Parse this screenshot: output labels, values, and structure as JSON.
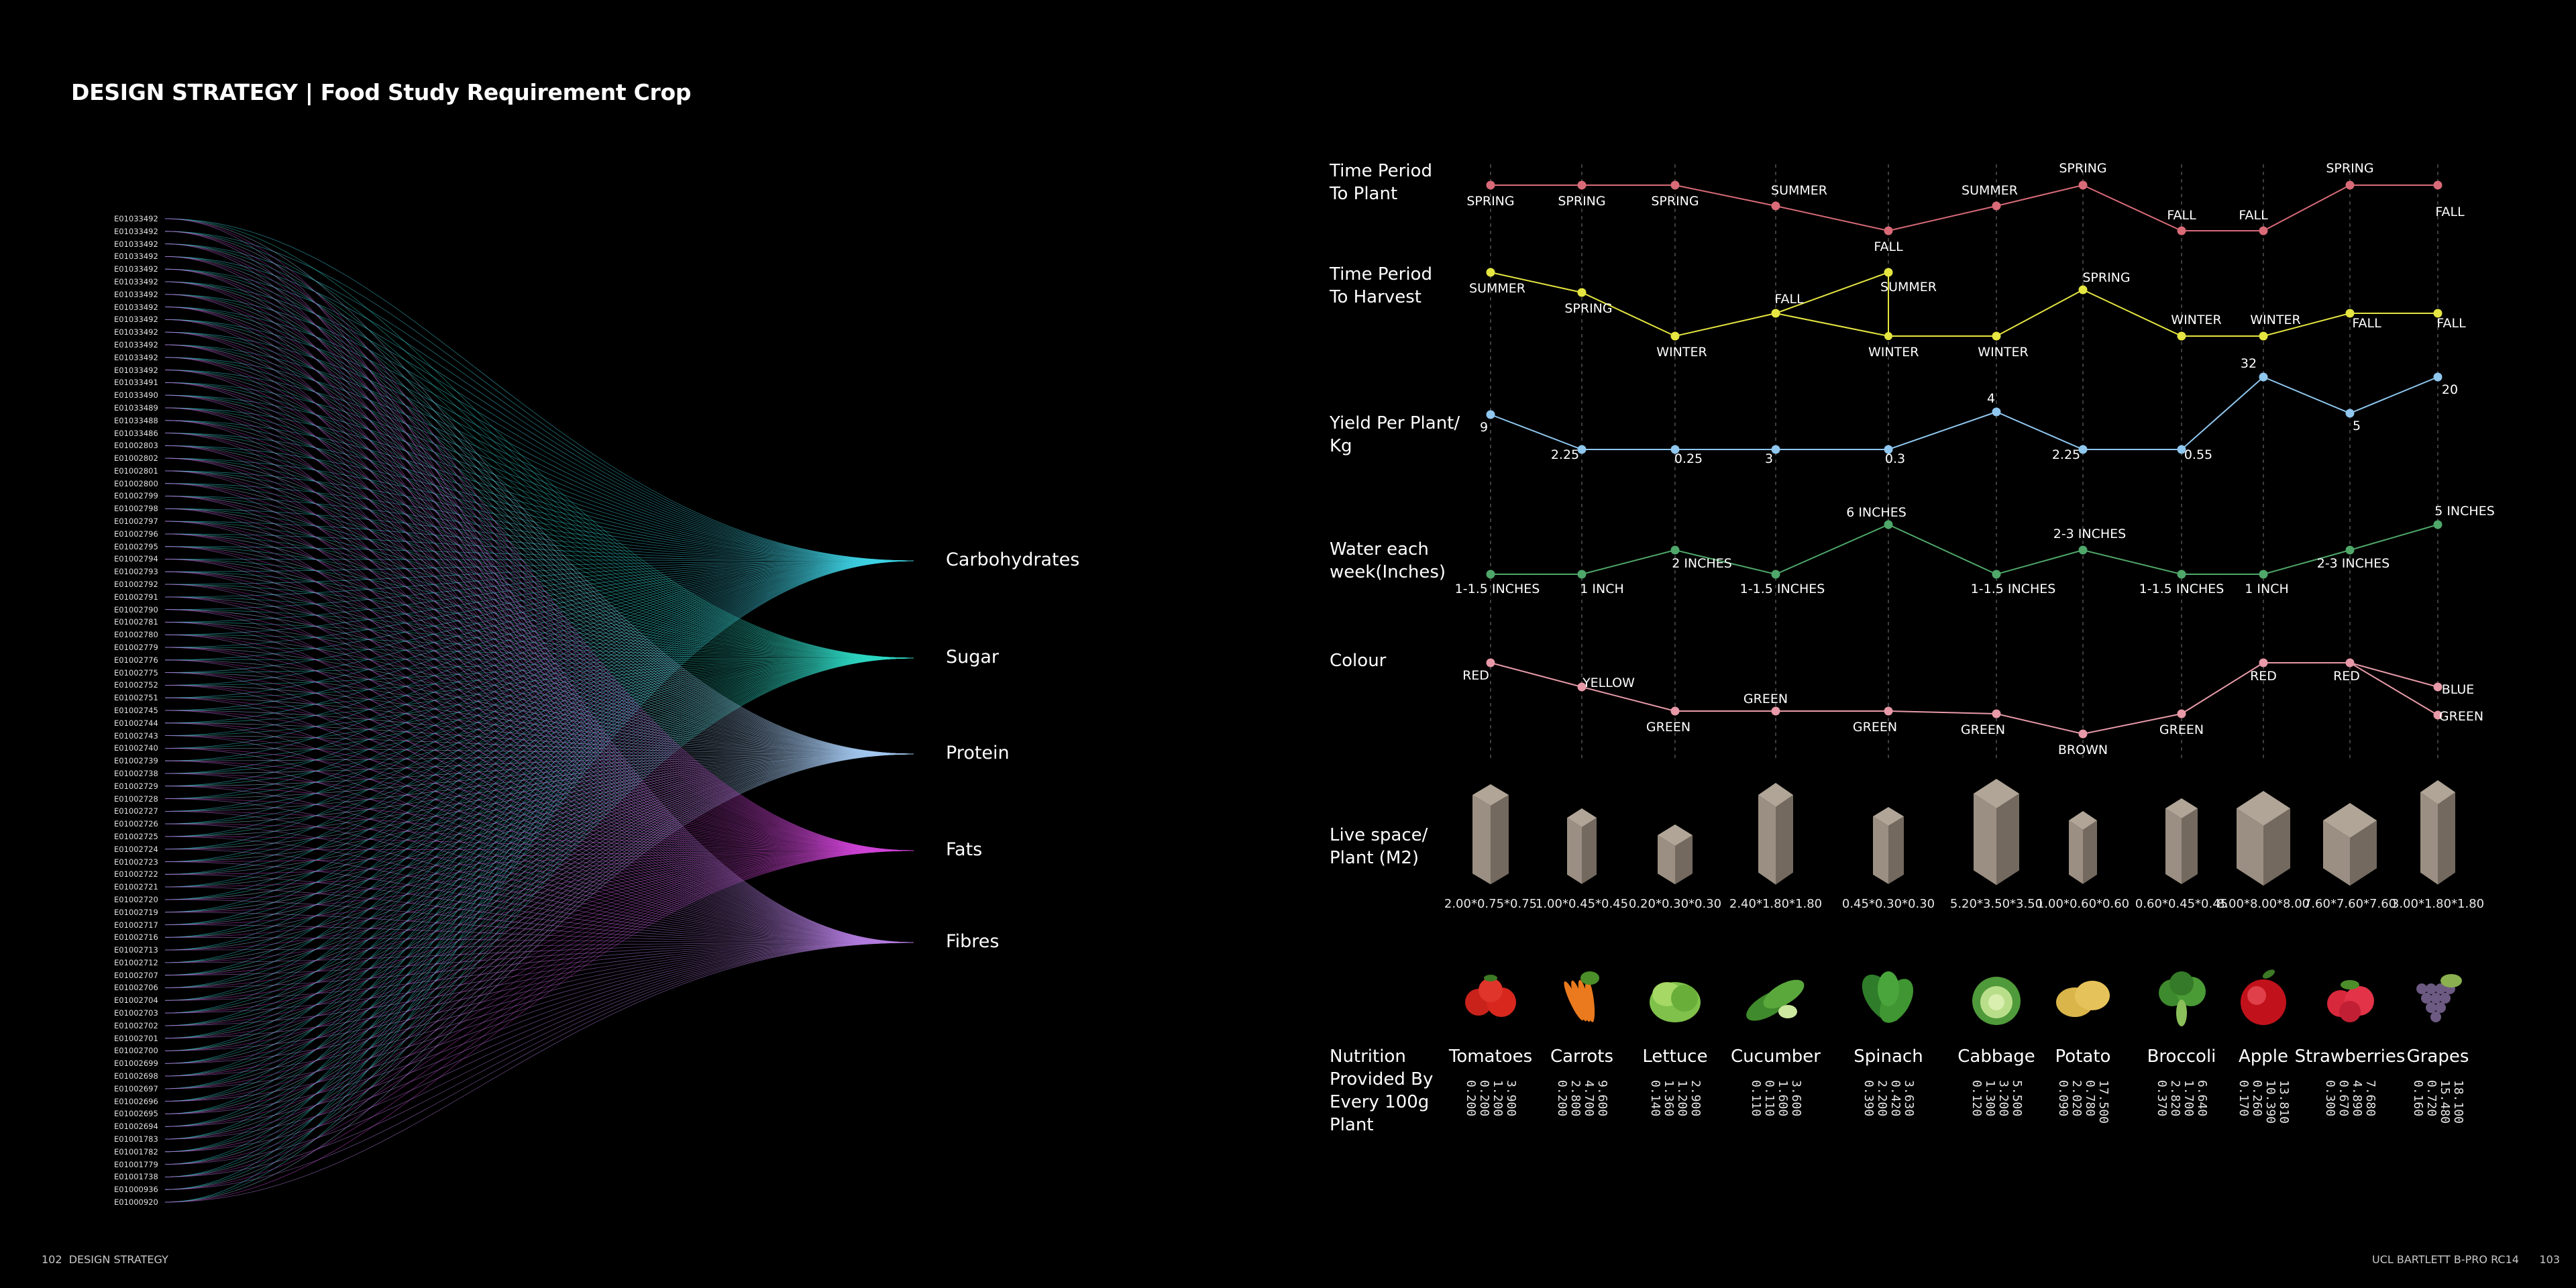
{
  "header": {
    "title": "DESIGN STRATEGY | Food Study Requirement Crop",
    "left_folio": "102",
    "left_section": "DESIGN STRATEGY",
    "right_course": "UCL BARTLETT B-PRO RC14",
    "right_folio": "103"
  },
  "sankey": {
    "ids": [
      "E01033492",
      "E01033492",
      "E01033492",
      "E01033492",
      "E01033492",
      "E01033492",
      "E01033492",
      "E01033492",
      "E01033492",
      "E01033492",
      "E01033492",
      "E01033492",
      "E01033492",
      "E01033491",
      "E01033490",
      "E01033489",
      "E01033488",
      "E01033486",
      "E01002803",
      "E01002802",
      "E01002801",
      "E01002800",
      "E01002799",
      "E01002798",
      "E01002797",
      "E01002796",
      "E01002795",
      "E01002794",
      "E01002793",
      "E01002792",
      "E01002791",
      "E01002790",
      "E01002781",
      "E01002780",
      "E01002779",
      "E01002776",
      "E01002775",
      "E01002752",
      "E01002751",
      "E01002745",
      "E01002744",
      "E01002743",
      "E01002740",
      "E01002739",
      "E01002738",
      "E01002729",
      "E01002728",
      "E01002727",
      "E01002726",
      "E01002725",
      "E01002724",
      "E01002723",
      "E01002722",
      "E01002721",
      "E01002720",
      "E01002719",
      "E01002717",
      "E01002716",
      "E01002713",
      "E01002712",
      "E01002707",
      "E01002706",
      "E01002704",
      "E01002703",
      "E01002702",
      "E01002701",
      "E01002700",
      "E01002699",
      "E01002698",
      "E01002697",
      "E01002696",
      "E01002695",
      "E01002694",
      "E01001783",
      "E01001782",
      "E01001779",
      "E01001738",
      "E01000936",
      "E01000920"
    ],
    "targets": [
      {
        "name": "Carbohydrates",
        "color": "#3fd4e6"
      },
      {
        "name": "Sugar",
        "color": "#2fd9c4"
      },
      {
        "name": "Protein",
        "color": "#a4c8f0"
      },
      {
        "name": "Fats",
        "color": "#d246d8"
      },
      {
        "name": "Fibres",
        "color": "#b57ee0"
      }
    ]
  },
  "crops": [
    "Tomatoes",
    "Carrots",
    "Lettuce",
    "Cucumber",
    "Spinach",
    "Cabbage",
    "Potato",
    "Broccoli",
    "Apple",
    "Strawberries",
    "Grapes"
  ],
  "rows": {
    "plant": {
      "label_lines": [
        "Time Period",
        "To Plant"
      ],
      "color": "#d96b78",
      "values": [
        "SPRING",
        "SPRING",
        "SPRING",
        "SUMMER",
        "FALL",
        "SUMMER",
        "SPRING",
        "FALL",
        "FALL",
        "SPRING",
        "FALL"
      ]
    },
    "harvest": {
      "label_lines": [
        "Time Period",
        "To Harvest"
      ],
      "color": "#e6e642",
      "values": [
        "SUMMER",
        "SPRING",
        "WINTER",
        "FALL",
        "SUMMER",
        "WINTER",
        "SPRING",
        "WINTER",
        "WINTER",
        "FALL",
        "FALL"
      ],
      "extra_points": [
        {
          "after": 4,
          "value": "WINTER"
        }
      ]
    },
    "yield": {
      "label_lines": [
        "Yield Per Plant/",
        "Kg"
      ],
      "color": "#8fc7ef",
      "values": [
        "9",
        "2.25",
        "0.25",
        "3",
        "0.3",
        "4",
        "2.25",
        "0.55",
        "32",
        "5",
        "20"
      ]
    },
    "water": {
      "label_lines": [
        "Water each",
        "week(Inches)"
      ],
      "color": "#4fa86a",
      "values": [
        "1-1.5 INCHES",
        "1 INCH",
        "2 INCHES",
        "1-1.5 INCHES",
        "6 INCHES",
        "1-1.5 INCHES",
        "2-3 INCHES",
        "1-1.5 INCHES",
        "1 INCH",
        "2-3 INCHES",
        "5 INCHES"
      ]
    },
    "colour": {
      "label_lines": [
        "Colour"
      ],
      "color": "#e89aa8",
      "values": [
        "RED",
        "YELLOW",
        "GREEN",
        "GREEN",
        "GREEN",
        "GREEN",
        "BROWN",
        "GREEN",
        "RED",
        "RED",
        "BLUE"
      ],
      "extra_labels": [
        {
          "index": 10,
          "value": "GREEN"
        }
      ]
    },
    "space": {
      "label_lines": [
        "Live space/",
        "Plant (M2)"
      ],
      "values": [
        "2.00*0.75*0.75",
        "1.00*0.45*0.45",
        "0.20*0.30*0.30",
        "2.40*1.80*1.80",
        "0.45*0.30*0.30",
        "5.20*3.50*3.50",
        "1.00*0.60*0.60",
        "0.60*0.45*0.45",
        "8.00*8.00*8.00",
        "7.60*7.60*7.60",
        "3.00*1.80*1.80"
      ]
    },
    "nutrition": {
      "label_lines": [
        "Nutrition",
        "Provided By",
        "Every 100g",
        "Plant"
      ],
      "values": [
        [
          "3.900",
          "1.200",
          "0.200",
          "0.200"
        ],
        [
          "9.600",
          "4.700",
          "2.800",
          "0.200"
        ],
        [
          "2.900",
          "1.200",
          "1.360",
          "0.140"
        ],
        [
          "3.600",
          "1.600",
          "0.110",
          "0.110"
        ],
        [
          "3.630",
          "0.420",
          "2.200",
          "0.390"
        ],
        [
          "5.500",
          "3.200",
          "1.300",
          "0.120"
        ],
        [
          "17.500",
          "0.780",
          "2.020",
          "0.090"
        ],
        [
          "6.640",
          "1.700",
          "2.820",
          "0.370"
        ],
        [
          "13.810",
          "10.390",
          "0.260",
          "0.170"
        ],
        [
          "7.680",
          "4.890",
          "0.670",
          "0.300"
        ],
        [
          "18.100",
          "15.480",
          "0.720",
          "0.160"
        ]
      ]
    }
  }
}
